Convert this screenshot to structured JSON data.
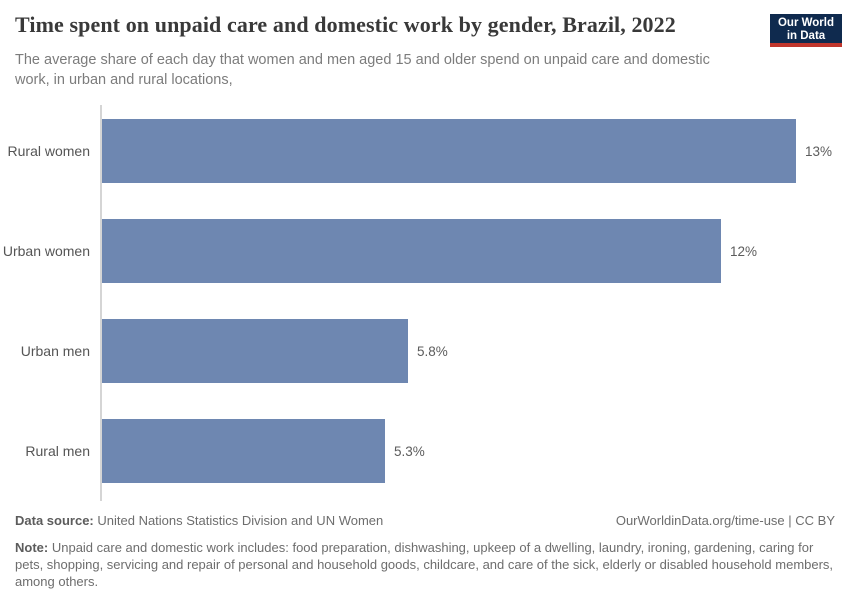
{
  "header": {
    "title": "Time spent on unpaid care and domestic work by gender, Brazil, 2022",
    "subtitle": "The average share of each day that women and men aged 15 and older spend on unpaid care and domestic work, in urban and rural locations,",
    "logo": {
      "line1": "Our World",
      "line2": "in Data",
      "bg_color": "#0f2a4e",
      "accent_color": "#c0362c"
    }
  },
  "chart_data": {
    "type": "bar",
    "orientation": "horizontal",
    "title": "Time spent on unpaid care and domestic work by gender, Brazil, 2022",
    "categories": [
      "Rural women",
      "Urban women",
      "Urban men",
      "Rural men"
    ],
    "values": [
      13,
      12,
      5.8,
      5.3
    ],
    "value_labels": [
      "13%",
      "12%",
      "5.8%",
      "5.3%"
    ],
    "plot_values": [
      13.0,
      11.6,
      5.73,
      5.3
    ],
    "xlim": [
      0,
      13
    ],
    "xlabel": "",
    "ylabel": "",
    "grid": false,
    "legend": false,
    "bar_color": "#6e87b1",
    "axis_color": "#d5d5d5"
  },
  "footer": {
    "data_source_label": "Data source:",
    "data_source_text": "United Nations Statistics Division and UN Women",
    "link_text": "OurWorldinData.org/time-use | CC BY",
    "note_label": "Note:",
    "note_text": "Unpaid care and domestic work includes: food preparation, dishwashing, upkeep of a dwelling, laundry, ironing, gardening, caring for pets, shopping, servicing and repair of personal and household goods, childcare, and care of the sick, elderly or disabled household members, among others."
  }
}
